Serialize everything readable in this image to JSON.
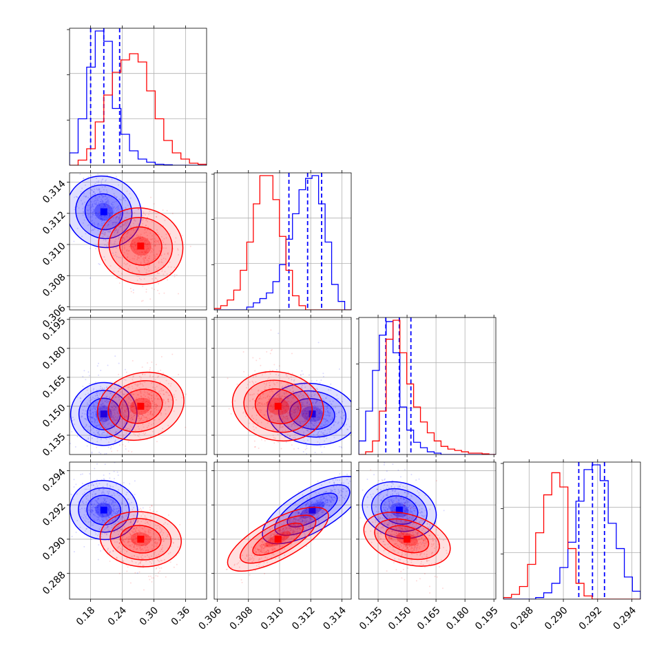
{
  "chart_data": {
    "type": "corner",
    "grid": true,
    "colors": {
      "blue": "#0000ff",
      "red": "#ff0000"
    },
    "parameters": [
      {
        "range": [
          0.14,
          0.4
        ],
        "ticks": [
          0.18,
          0.24,
          0.3,
          0.36
        ],
        "tick_labels": [
          "0.18",
          "0.24",
          "0.30",
          "0.36"
        ]
      },
      {
        "range": [
          0.3058,
          0.3146
        ],
        "ticks": [
          0.306,
          0.308,
          0.31,
          0.312,
          0.314
        ],
        "tick_labels": [
          "0.306",
          "0.308",
          "0.310",
          "0.312",
          "0.314"
        ]
      },
      {
        "range": [
          0.125,
          0.196
        ],
        "ticks": [
          0.135,
          0.15,
          0.165,
          0.18,
          0.195
        ],
        "tick_labels": [
          "0.135",
          "0.150",
          "0.165",
          "0.180",
          "0.195"
        ]
      },
      {
        "range": [
          0.2865,
          0.2945
        ],
        "ticks": [
          0.288,
          0.29,
          0.292,
          0.294
        ],
        "tick_labels": [
          "0.288",
          "0.290",
          "0.292",
          "0.294"
        ]
      }
    ],
    "series": [
      {
        "color": "blue",
        "quantiles": [
          [
            0.18,
            0.205,
            0.235
          ],
          [
            0.3106,
            0.3118,
            0.3127
          ],
          [
            0.139,
            0.146,
            0.152
          ],
          [
            0.2909,
            0.2917,
            0.2924
          ]
        ],
        "means": [
          0.205,
          0.3121,
          0.146,
          0.2917
        ],
        "sigmas": [
          0.025,
          0.0011,
          0.007,
          0.00075
        ],
        "hist1d": [
          {
            "edges": [
              0.14,
              0.4
            ],
            "counts": [
              0.12,
              0.45,
              0.95,
              1.3,
              1.2,
              0.55,
              0.3,
              0.14,
              0.06,
              0.03,
              0.01,
              0.005,
              0,
              0,
              0,
              0
            ]
          },
          {
            "edges": [
              0.3058,
              0.3146
            ],
            "counts": [
              0,
              0,
              0,
              0,
              0,
              0.02,
              0.05,
              0.08,
              0.12,
              0.2,
              0.32,
              0.5,
              0.68,
              0.85,
              0.93,
              0.95,
              0.75,
              0.48,
              0.18,
              0.06,
              0
            ]
          },
          {
            "edges": [
              0.125,
              0.196
            ],
            "counts": [
              0.1,
              0.32,
              0.62,
              0.88,
              0.98,
              0.75,
              0.35,
              0.18,
              0.09,
              0.05,
              0.02,
              0.01,
              0,
              0,
              0,
              0,
              0,
              0,
              0,
              0
            ]
          },
          {
            "edges": [
              0.2865,
              0.2945
            ],
            "counts": [
              0,
              0,
              0,
              0,
              0.01,
              0.04,
              0.1,
              0.2,
              0.36,
              0.62,
              0.82,
              0.85,
              0.75,
              0.48,
              0.32,
              0.14,
              0.05
            ]
          }
        ]
      },
      {
        "color": "red",
        "quantiles": [],
        "means": [
          0.275,
          0.3099,
          0.15,
          0.29
        ],
        "sigmas": [
          0.03,
          0.0011,
          0.008,
          0.0007
        ],
        "hist1d": [
          {
            "edges": [
              0.14,
              0.4
            ],
            "counts": [
              0,
              0.05,
              0.16,
              0.42,
              0.68,
              0.9,
              1.02,
              1.08,
              1.0,
              0.72,
              0.45,
              0.24,
              0.12,
              0.06,
              0.02,
              0.01
            ]
          },
          {
            "edges": [
              0.3058,
              0.3146
            ],
            "counts": [
              0.01,
              0.03,
              0.07,
              0.14,
              0.28,
              0.48,
              0.75,
              0.95,
              0.95,
              0.78,
              0.52,
              0.28,
              0.1,
              0.03,
              0,
              0,
              0,
              0,
              0,
              0,
              0
            ]
          },
          {
            "edges": [
              0.125,
              0.196
            ],
            "counts": [
              0,
              0.02,
              0.1,
              0.32,
              0.85,
              0.99,
              0.75,
              0.52,
              0.35,
              0.24,
              0.16,
              0.1,
              0.06,
              0.04,
              0.03,
              0.02,
              0.01,
              0.01,
              0.005,
              0
            ]
          },
          {
            "edges": [
              0.2865,
              0.2945
            ],
            "counts": [
              0.01,
              0.03,
              0.08,
              0.22,
              0.42,
              0.66,
              0.8,
              0.71,
              0.32,
              0.1,
              0.02,
              0,
              0,
              0,
              0,
              0,
              0
            ]
          }
        ]
      }
    ]
  }
}
